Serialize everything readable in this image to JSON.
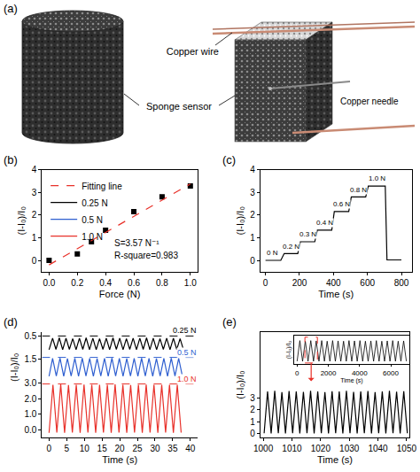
{
  "diagram": {
    "panel": "(a)",
    "copper_wire": "Copper wire",
    "sponge_sensor": "Sponge sensor",
    "copper_needle": "Copper needle"
  },
  "chart_data": [
    {
      "panel": "(b)",
      "type": "scatter",
      "xlabel": "Force (N)",
      "ylabel": "(I-I₀)/I₀",
      "grid": false,
      "legend": "top-left",
      "xlim": [
        -0.05,
        1.05
      ],
      "xticks": [
        {
          "value": 0,
          "label": "0.0"
        },
        0.2,
        0.4,
        0.6,
        0.8,
        {
          "value": 1,
          "label": "1.0"
        }
      ],
      "ylim": [
        -0.5,
        4
      ],
      "yticks": [
        0,
        1,
        2,
        3,
        4
      ],
      "series": [
        {
          "type": "scatter",
          "marker": "square",
          "color": "#000000",
          "x": [
            0,
            0.2,
            0.3,
            0.4,
            0.6,
            0.8,
            1.0
          ],
          "values": [
            0.0,
            0.28,
            0.82,
            1.33,
            2.15,
            2.8,
            3.28
          ]
        },
        {
          "name": "Fitting line",
          "type": "line",
          "line_style": "dash",
          "color": "#e8312a",
          "x": [
            0,
            1.0
          ],
          "values": [
            -0.2,
            3.37
          ]
        }
      ],
      "annotations": [
        {
          "text": "S=3.57 N⁻¹",
          "x": 0.45,
          "y": 0.75
        },
        {
          "text": "R-square=0.983",
          "x": 0.45,
          "y": 0.2
        }
      ]
    },
    {
      "panel": "(c)",
      "type": "line",
      "xlabel": "Time (s)",
      "ylabel": "(I-I₀)/I₀",
      "grid": false,
      "xlim": [
        -30,
        860
      ],
      "xticks": [
        0,
        200,
        400,
        600,
        800
      ],
      "ylim": [
        -0.5,
        4
      ],
      "yticks": [
        0,
        1,
        2,
        3,
        4
      ],
      "series": [
        {
          "color": "#000000",
          "x": [
            0,
            90,
            110,
            190,
            205,
            290,
            305,
            390,
            405,
            490,
            505,
            590,
            605,
            705,
            715,
            800
          ],
          "values": [
            0.0,
            0.0,
            0.3,
            0.3,
            0.82,
            0.82,
            1.33,
            1.33,
            2.15,
            2.15,
            2.8,
            2.8,
            3.28,
            3.28,
            0.02,
            0.02
          ]
        }
      ],
      "annotations": [
        {
          "text": "0 N",
          "x": 40,
          "y": 0.1
        },
        {
          "text": "0.2 N",
          "x": 150,
          "y": 0.4
        },
        {
          "text": "0.3 N",
          "x": 248,
          "y": 0.92
        },
        {
          "text": "0.4 N",
          "x": 348,
          "y": 1.43
        },
        {
          "text": "0.6 N",
          "x": 448,
          "y": 2.25
        },
        {
          "text": "0.8 N",
          "x": 548,
          "y": 2.9
        },
        {
          "text": "1.0 N",
          "x": 655,
          "y": 3.38
        }
      ]
    },
    {
      "panel": "(d)",
      "type": "line",
      "xlabel": "Time (s)",
      "ylabel": "(I-I₀)/I₀",
      "grid": false,
      "xlim": [
        -2,
        42
      ],
      "xticks": [
        0,
        5,
        10,
        15,
        20,
        25,
        30,
        35,
        40
      ],
      "series": [
        {
          "name": "0.25 N",
          "color": "#000000",
          "reference": 0.5,
          "ylim": [
            0,
            0.6
          ],
          "yticks": [
            0.5
          ],
          "x": [
            0,
            1.0,
            1.95,
            2.9,
            3.85,
            4.8,
            5.75,
            6.7,
            7.65,
            8.6,
            9.55,
            10.5,
            11.45,
            12.4,
            13.35,
            14.3,
            15.25,
            16.2,
            17.15,
            18.1,
            19.05,
            20.0,
            20.95,
            21.9,
            22.85,
            23.8,
            24.75,
            25.7,
            26.65,
            27.6,
            28.55,
            29.5,
            30.45,
            31.4,
            32.35,
            33.3,
            34.25,
            35.2,
            36.15,
            37.1,
            38.05
          ],
          "values": [
            0.13,
            0.44,
            0.14,
            0.45,
            0.13,
            0.44,
            0.14,
            0.43,
            0.13,
            0.44,
            0.14,
            0.45,
            0.13,
            0.44,
            0.13,
            0.43,
            0.14,
            0.44,
            0.13,
            0.45,
            0.14,
            0.44,
            0.13,
            0.43,
            0.14,
            0.44,
            0.13,
            0.44,
            0.14,
            0.45,
            0.13,
            0.44,
            0.13,
            0.43,
            0.14,
            0.44,
            0.13,
            0.44,
            0.14,
            0.43,
            0.13
          ]
        },
        {
          "name": "0.5 N",
          "color": "#2f5fd0",
          "reference": 1.6,
          "ylim": [
            0.4,
            1.75
          ],
          "yticks": [
            1.5
          ],
          "x": [
            0,
            1.0,
            2.05,
            3.1,
            4.15,
            5.2,
            6.25,
            7.3,
            8.35,
            9.4,
            10.45,
            11.5,
            12.55,
            13.6,
            14.65,
            15.7,
            16.75,
            17.8,
            18.85,
            19.9,
            20.95,
            22.0,
            23.05,
            24.1,
            25.15,
            26.2,
            27.25,
            28.3,
            29.35,
            30.4,
            31.45,
            32.5,
            33.55,
            34.6,
            35.65,
            36.7,
            37.75
          ],
          "values": [
            0.6,
            1.55,
            0.62,
            1.56,
            0.6,
            1.54,
            0.61,
            1.55,
            0.6,
            1.56,
            0.62,
            1.55,
            0.6,
            1.54,
            0.61,
            1.55,
            0.6,
            1.56,
            0.61,
            1.55,
            0.6,
            1.54,
            0.62,
            1.55,
            0.6,
            1.56,
            0.61,
            1.55,
            0.6,
            1.54,
            0.61,
            1.55,
            0.6,
            1.56,
            0.62,
            1.55,
            0.6
          ]
        },
        {
          "name": "1.0 N",
          "color": "#e8312a",
          "reference": 2.95,
          "ylim": [
            -0.5,
            3.2
          ],
          "yticks": [
            {
              "value": 0,
              "label": "0.0"
            },
            {
              "value": 1,
              "label": "1.0"
            },
            {
              "value": 2,
              "label": "2.0"
            },
            {
              "value": 3,
              "label": "3.0"
            }
          ],
          "x": [
            0,
            1.1,
            2.2,
            3.3,
            4.4,
            5.5,
            6.6,
            7.7,
            8.8,
            9.9,
            11.0,
            12.1,
            13.2,
            14.3,
            15.4,
            16.5,
            17.6,
            18.7,
            19.8,
            20.9,
            22.0,
            23.1,
            24.2,
            25.3,
            26.4,
            27.5,
            28.6,
            29.7,
            30.8,
            31.9,
            33.0,
            34.1,
            35.2,
            36.3,
            37.4
          ],
          "values": [
            -0.2,
            2.9,
            -0.18,
            2.92,
            -0.2,
            2.88,
            -0.19,
            2.9,
            -0.2,
            2.91,
            -0.18,
            2.9,
            -0.2,
            2.89,
            -0.19,
            2.9,
            -0.2,
            2.92,
            -0.18,
            2.9,
            -0.2,
            2.88,
            -0.19,
            2.9,
            -0.2,
            2.91,
            -0.18,
            2.9,
            -0.2,
            2.89,
            -0.19,
            2.9,
            -0.2,
            2.9,
            -0.19
          ]
        }
      ]
    },
    {
      "panel": "(e)",
      "type": "line",
      "xlabel": "Time (s)",
      "ylabel": "(I-I₀)/I₀",
      "grid": false,
      "xlim": [
        999,
        1051
      ],
      "xticks": [
        1000,
        1010,
        1020,
        1030,
        1040,
        1050
      ],
      "ylim": [
        -0.3,
        8.5
      ],
      "yticks": [
        0,
        1,
        2,
        3
      ],
      "series": [
        {
          "color": "#000000",
          "x": [
            1000.3,
            1001.5,
            1002.75,
            1004.0,
            1005.25,
            1006.5,
            1007.75,
            1009.0,
            1010.25,
            1011.5,
            1012.75,
            1014.0,
            1015.25,
            1016.5,
            1017.75,
            1019.0,
            1020.25,
            1021.5,
            1022.75,
            1024.0,
            1025.25,
            1026.5,
            1027.75,
            1029.0,
            1030.25,
            1031.5,
            1032.75,
            1034.0,
            1035.25,
            1036.5,
            1037.75,
            1039.0,
            1040.25,
            1041.5,
            1042.75,
            1044.0,
            1045.25,
            1046.5,
            1047.75,
            1049.0,
            1050.25
          ],
          "values": [
            0.05,
            3.55,
            0.04,
            3.6,
            0.05,
            3.5,
            0.04,
            3.58,
            0.05,
            3.55,
            0.04,
            3.52,
            0.05,
            3.6,
            0.04,
            3.55,
            0.05,
            3.5,
            0.04,
            3.57,
            0.05,
            3.55,
            0.04,
            3.6,
            0.05,
            3.52,
            0.04,
            3.55,
            0.05,
            3.58,
            0.04,
            3.5,
            0.05,
            3.55,
            0.04,
            3.6,
            0.05,
            3.53,
            0.04,
            3.56,
            0.05
          ]
        }
      ],
      "inset": {
        "type": "line",
        "xlabel": "Time (s)",
        "ylabel": "(I-I₀)/I₀",
        "grid": false,
        "tick_labels": "x",
        "xlim": [
          -200,
          7200
        ],
        "xticks": [
          0,
          2000,
          4000,
          6000
        ],
        "ylim": [
          -0.5,
          4.5
        ],
        "highlight": {
          "x": [
            500,
            1300
          ],
          "y": [
            -0.3,
            4.2
          ],
          "color": "#e8312a",
          "line_style": "dash"
        },
        "series": [
          {
            "color": "#000000",
            "x": [
              0,
              175,
              350,
              525,
              700,
              875,
              1050,
              1225,
              1400,
              1575,
              1750,
              1925,
              2100,
              2275,
              2450,
              2625,
              2800,
              2975,
              3150,
              3325,
              3500,
              3675,
              3850,
              4025,
              4200,
              4375,
              4550,
              4725,
              4900,
              5075,
              5250,
              5425,
              5600,
              5775,
              5950,
              6125,
              6300,
              6475,
              6650,
              6825,
              7000
            ],
            "values": [
              0,
              3.6,
              0,
              3.5,
              0,
              3.6,
              0,
              3.55,
              0,
              3.6,
              0,
              3.5,
              0,
              3.6,
              0,
              3.55,
              0,
              3.5,
              0,
              3.6,
              0,
              3.55,
              0,
              3.6,
              0,
              3.5,
              0,
              3.55,
              0,
              3.6,
              0,
              3.5,
              0,
              3.55,
              0,
              3.6,
              0,
              3.5,
              0,
              3.55,
              0
            ]
          }
        ]
      }
    }
  ]
}
